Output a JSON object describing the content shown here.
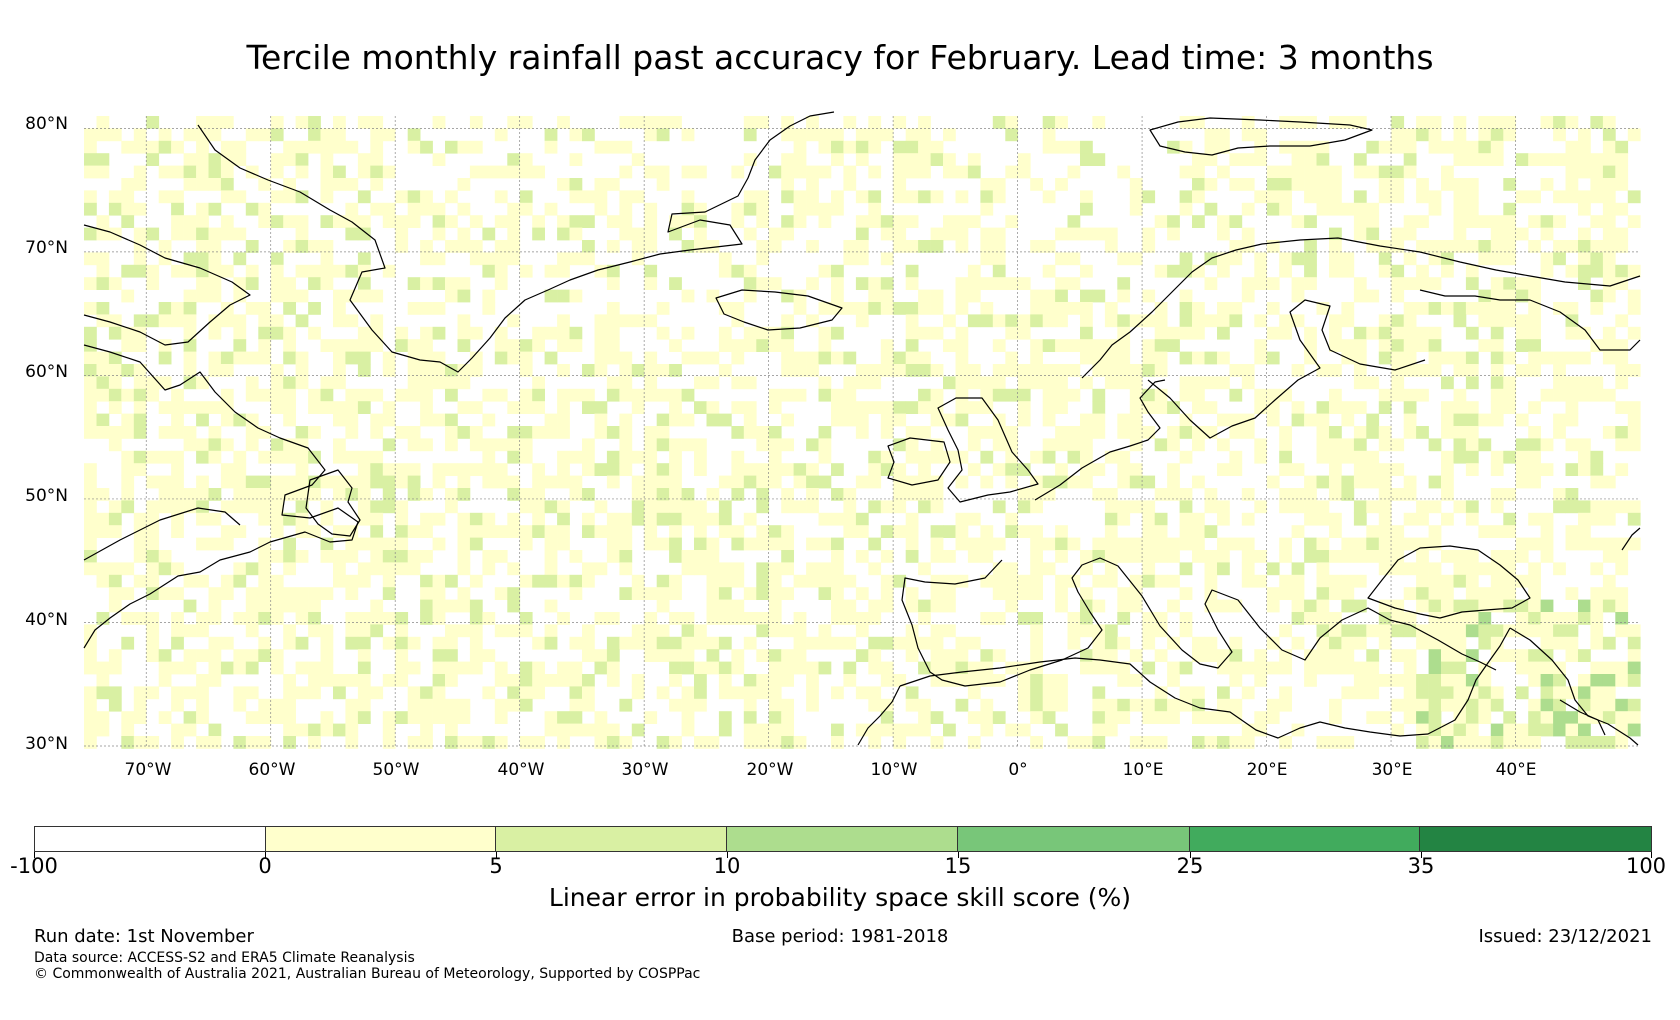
{
  "title": "Tercile monthly rainfall past accuracy for February. Lead time: 3 months",
  "map": {
    "lon_range": [
      -75,
      50
    ],
    "lat_range": [
      30,
      81
    ],
    "lat_labels": [
      "80°N",
      "70°N",
      "60°N",
      "50°N",
      "40°N",
      "30°N"
    ],
    "lat_values": [
      80,
      70,
      60,
      50,
      40,
      30
    ],
    "lon_labels": [
      "70°W",
      "60°W",
      "50°W",
      "40°W",
      "30°W",
      "20°W",
      "10°W",
      "0°",
      "10°E",
      "20°E",
      "30°E",
      "40°E"
    ],
    "lon_values": [
      -70,
      -60,
      -50,
      -40,
      -30,
      -20,
      -10,
      0,
      10,
      20,
      30,
      40
    ]
  },
  "colorbar": {
    "title": "Linear error in probability space skill score (%)",
    "labels": [
      "-100",
      "0",
      "5",
      "10",
      "15",
      "25",
      "35",
      "100"
    ],
    "colors": [
      "#ffffff",
      "#ffffcc",
      "#d9f0a3",
      "#addd8e",
      "#78c679",
      "#41ab5d",
      "#238443"
    ]
  },
  "footer": {
    "run_date": "Run date: 1st November",
    "base_period": "Base period: 1981-2018",
    "issued": "Issued: 23/12/2021",
    "data_source": "Data source: ACCESS-S2 and ERA5 Climate Reanalysis",
    "copyright": "© Commonwealth of Australia 2021, Australian Bureau of Meteorology, Supported by COSPPac"
  }
}
